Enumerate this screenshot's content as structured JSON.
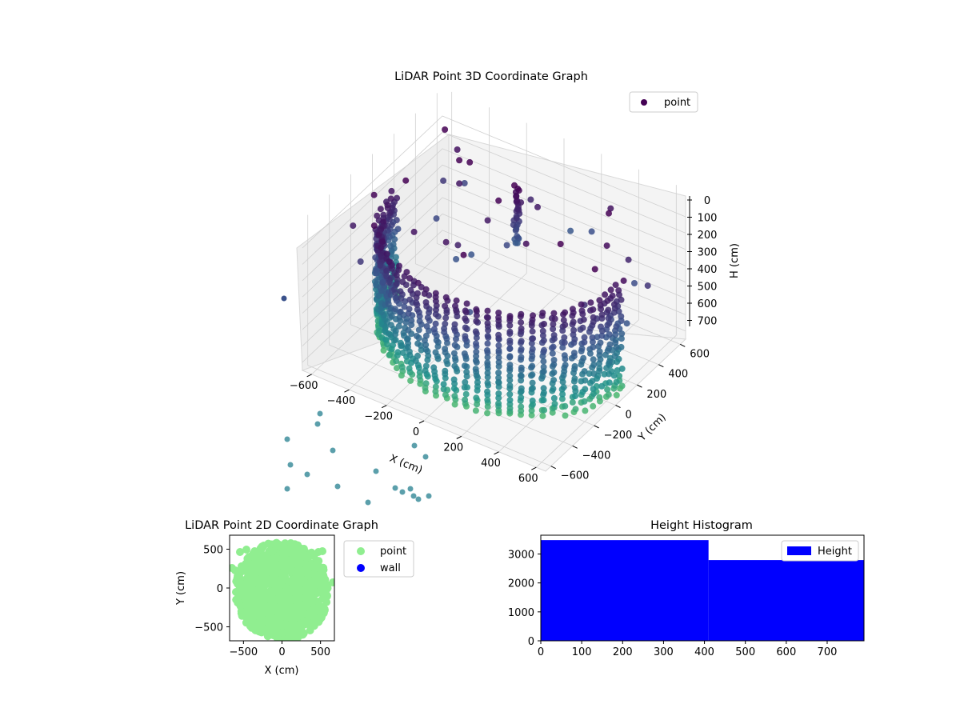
{
  "colors": {
    "viridis_dark": "#440154",
    "viridis_mid": "#3b528b",
    "viridis_teal": "#2c9f94",
    "scatter2d_point": "#90ee90",
    "scatter2d_wall": "#0000ff",
    "histogram": "#0000ff"
  },
  "chart_data": [
    {
      "type": "scatter3d",
      "title": "LiDAR Point 3D Coordinate Graph",
      "xlabel": "X (cm)",
      "ylabel": "Y (cm)",
      "zlabel": "H (cm)",
      "xticks": [
        "−600",
        "−400",
        "−200",
        "0",
        "200",
        "400",
        "600"
      ],
      "yticks": [
        "−600",
        "−400",
        "−200",
        "0",
        "200",
        "400",
        "600"
      ],
      "zticks": [
        "0",
        "100",
        "200",
        "300",
        "400",
        "500",
        "600",
        "700"
      ],
      "xlim": [
        -650,
        650
      ],
      "ylim": [
        -650,
        650
      ],
      "zlim": [
        0,
        750
      ],
      "zaxis_inverted": true,
      "colormap": "viridis",
      "grid": true,
      "legend": {
        "placement": "top-right",
        "entries": [
          "point"
        ]
      },
      "shape": "semi-cylindrical wall of radius ~600 cm, height ~700 cm, opening toward +Y, with a vertical pole near (-100, 350) and sparse outliers"
    },
    {
      "type": "scatter",
      "title": "LiDAR Point 2D Coordinate Graph",
      "xlabel": "X (cm)",
      "ylabel": "Y (cm)",
      "xticks": [
        "−500",
        "0",
        "500"
      ],
      "yticks": [
        "500",
        "0",
        "−500"
      ],
      "xlim": [
        -680,
        680
      ],
      "ylim": [
        -680,
        680
      ],
      "legend": {
        "placement": "outside-right",
        "entries": [
          "point",
          "wall"
        ]
      },
      "series": [
        {
          "name": "point",
          "color": "#90ee90",
          "description": "dense disc of points covering x -600..600, y -650..650"
        },
        {
          "name": "wall",
          "color": "#0000ff",
          "points": []
        }
      ]
    },
    {
      "type": "bar",
      "title": "Height Histogram",
      "xticks": [
        "0",
        "100",
        "200",
        "300",
        "400",
        "500",
        "600",
        "700"
      ],
      "yticks": [
        "0",
        "1000",
        "2000",
        "3000"
      ],
      "xlim": [
        0,
        790
      ],
      "ylim": [
        0,
        3650
      ],
      "legend": {
        "placement": "top-right",
        "entries": [
          "Height"
        ]
      },
      "bins": [
        {
          "x0": 0,
          "x1": 410,
          "count": 3480
        },
        {
          "x0": 410,
          "x1": 790,
          "count": 2790
        }
      ]
    }
  ]
}
